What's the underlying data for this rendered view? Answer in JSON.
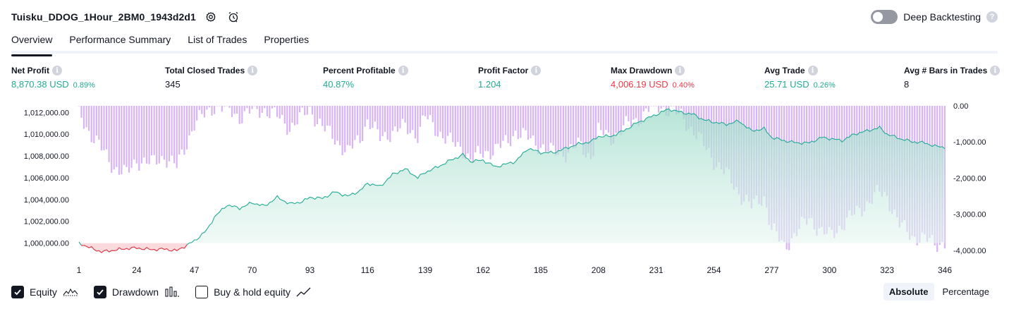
{
  "header": {
    "title": "Tuisku_DDOG_1Hour_2BM0_1943d2d1",
    "deep_backtesting_label": "Deep Backtesting",
    "deep_backtesting_enabled": false
  },
  "tabs": [
    {
      "label": "Overview",
      "active": true
    },
    {
      "label": "Performance Summary",
      "active": false
    },
    {
      "label": "List of Trades",
      "active": false
    },
    {
      "label": "Properties",
      "active": false
    }
  ],
  "metrics": {
    "net_profit": {
      "label": "Net Profit",
      "value": "8,870.38 USD",
      "pct": "0.89%"
    },
    "total_closed_trades": {
      "label": "Total Closed Trades",
      "value": "345"
    },
    "percent_profitable": {
      "label": "Percent Profitable",
      "value": "40.87%"
    },
    "profit_factor": {
      "label": "Profit Factor",
      "value": "1.204"
    },
    "max_drawdown": {
      "label": "Max Drawdown",
      "value": "4,006.19 USD",
      "pct": "0.40%"
    },
    "avg_trade": {
      "label": "Avg Trade",
      "value": "25.71 USD",
      "pct": "0.26%"
    },
    "avg_bars": {
      "label": "Avg # Bars in Trades",
      "value": "8"
    }
  },
  "legend": {
    "equity": {
      "label": "Equity",
      "checked": true
    },
    "drawdown": {
      "label": "Drawdown",
      "checked": true
    },
    "buy_hold": {
      "label": "Buy & hold equity",
      "checked": false
    }
  },
  "scale": {
    "absolute_label": "Absolute",
    "percentage_label": "Percentage",
    "active": "Absolute"
  },
  "colors": {
    "positive": "#22ab94",
    "negative": "#f23645",
    "equity_line": "#22ab94",
    "equity_fill": "#d3f0ea",
    "equity_below_line": "#f23645",
    "equity_below_fill": "#fbdde0",
    "drawdown_bar": "#d9b4f4",
    "drawdown_bar_overlap": "#a9b8ee"
  },
  "chart_data": {
    "type": "area",
    "equity_series": {
      "name": "Equity",
      "x": [
        1,
        5,
        10,
        15,
        20,
        24,
        30,
        35,
        40,
        47,
        52,
        55,
        60,
        65,
        70,
        75,
        80,
        85,
        90,
        93,
        98,
        103,
        108,
        113,
        116,
        121,
        126,
        131,
        136,
        139,
        144,
        149,
        154,
        157,
        162,
        167,
        172,
        175,
        180,
        185,
        190,
        195,
        200,
        205,
        208,
        213,
        218,
        223,
        228,
        231,
        236,
        241,
        246,
        250,
        254,
        259,
        264,
        269,
        274,
        277,
        282,
        287,
        292,
        297,
        300,
        305,
        310,
        315,
        320,
        323,
        328,
        333,
        338,
        342,
        346
      ],
      "y": [
        1000000,
        999600,
        999200,
        999350,
        999500,
        999550,
        999400,
        999450,
        999300,
        1000200,
        1001200,
        1002400,
        1003500,
        1003200,
        1003700,
        1003400,
        1004200,
        1003600,
        1003800,
        1004200,
        1004100,
        1004700,
        1004300,
        1004800,
        1005500,
        1005200,
        1006300,
        1006800,
        1006000,
        1006500,
        1007000,
        1007600,
        1008100,
        1007500,
        1007600,
        1007000,
        1007300,
        1007500,
        1008700,
        1008300,
        1008300,
        1008700,
        1009100,
        1009300,
        1009800,
        1009800,
        1010300,
        1011000,
        1011500,
        1011800,
        1012300,
        1012000,
        1011800,
        1011300,
        1011100,
        1010900,
        1011200,
        1010300,
        1010500,
        1009700,
        1009400,
        1009200,
        1009200,
        1009700,
        1009600,
        1009400,
        1010000,
        1010300,
        1010600,
        1010000,
        1009600,
        1009300,
        1009200,
        1008900,
        1008800
      ]
    },
    "drawdown_series": {
      "name": "Drawdown",
      "x": [
        1,
        5,
        10,
        15,
        20,
        24,
        30,
        35,
        40,
        47,
        52,
        55,
        60,
        65,
        70,
        75,
        80,
        85,
        90,
        93,
        98,
        103,
        108,
        113,
        116,
        121,
        126,
        131,
        136,
        139,
        144,
        149,
        154,
        157,
        162,
        167,
        172,
        175,
        180,
        185,
        190,
        195,
        200,
        205,
        208,
        213,
        218,
        223,
        228,
        231,
        236,
        241,
        246,
        250,
        254,
        259,
        264,
        269,
        274,
        277,
        282,
        287,
        292,
        297,
        300,
        305,
        310,
        315,
        320,
        323,
        328,
        333,
        338,
        342,
        346
      ],
      "y": [
        -200,
        -700,
        -1200,
        -1700,
        -1900,
        -1500,
        -1600,
        -1400,
        -1700,
        -500,
        -200,
        0,
        -100,
        -300,
        -150,
        -100,
        -300,
        -600,
        -300,
        -100,
        -600,
        -900,
        -1300,
        -900,
        -400,
        -900,
        -700,
        -600,
        -800,
        -300,
        -700,
        -1000,
        -1200,
        -1500,
        -1300,
        -1200,
        -1000,
        -700,
        -900,
        -1100,
        -1300,
        -1300,
        -1100,
        -1400,
        -700,
        -900,
        -600,
        -400,
        -100,
        0,
        -100,
        -300,
        -700,
        -1100,
        -1500,
        -1900,
        -2400,
        -2800,
        -2500,
        -3400,
        -3900,
        -3500,
        -3100,
        -3500,
        -3600,
        -3300,
        -3000,
        -2700,
        -2400,
        -2500,
        -3300,
        -3600,
        -3700,
        -3800,
        -3800
      ]
    },
    "x_ticks": [
      "1",
      "24",
      "47",
      "70",
      "93",
      "116",
      "139",
      "162",
      "185",
      "208",
      "231",
      "254",
      "277",
      "300",
      "323",
      "346"
    ],
    "y_left_ticks": [
      "1,012,000.00",
      "1,010,000.00",
      "1,008,000.00",
      "1,006,000.00",
      "1,004,000.00",
      "1,002,000.00",
      "1,000,000.00"
    ],
    "y_right_ticks": [
      "0.00",
      "-1,000.00",
      "-2,000.00",
      "-3,000.00",
      "-4,000.00"
    ],
    "y_left_range": [
      999000,
      1012600
    ],
    "y_right_range": [
      -4100,
      0
    ],
    "x_range": [
      1,
      346
    ],
    "grid": false
  }
}
